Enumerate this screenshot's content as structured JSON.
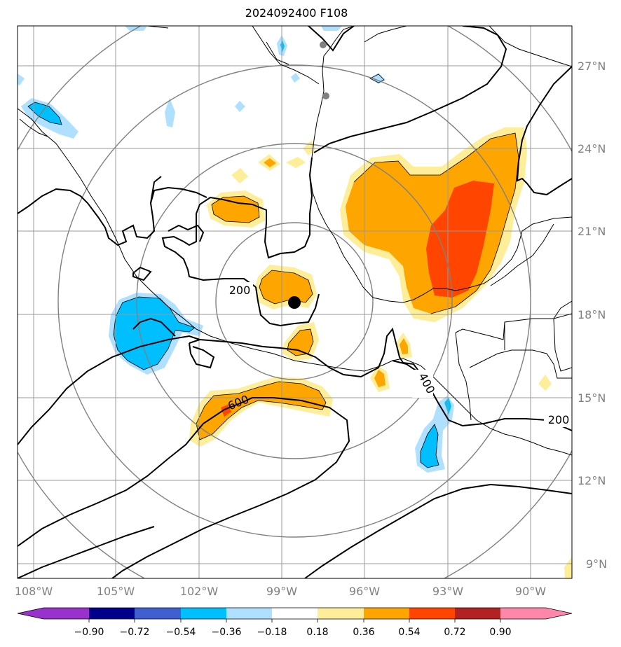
{
  "title": "2024092400 F108",
  "map": {
    "lon_labels": [
      "108°W",
      "105°W",
      "102°W",
      "99°W",
      "96°W",
      "93°W",
      "90°W"
    ],
    "lat_labels": [
      "27°N",
      "24°N",
      "21°N",
      "18°N",
      "15°N",
      "12°N",
      "9°N"
    ],
    "contour_labels": [
      "200",
      "400",
      "600",
      "200"
    ],
    "colors": {
      "light_yellow": "#ffee99",
      "orange": "#ffa500",
      "red_orange": "#ff4500",
      "light_blue": "#b0e0ff",
      "deep_sky_blue": "#00bfff",
      "center_marker": "#000000",
      "city_dot": "#808080",
      "gridline": "#999999",
      "range_ring": "#808080"
    }
  },
  "colorbar": {
    "tick_labels": [
      "−0.90",
      "−0.72",
      "−0.54",
      "−0.36",
      "−0.18",
      "0.18",
      "0.36",
      "0.54",
      "0.72",
      "0.90"
    ],
    "colors": [
      "#9932cc",
      "#00008b",
      "#4060d0",
      "#00bfff",
      "#b0e0ff",
      "#ffffff",
      "#ffee99",
      "#ffa500",
      "#ff4500",
      "#b22222",
      "#ff88aa"
    ]
  }
}
